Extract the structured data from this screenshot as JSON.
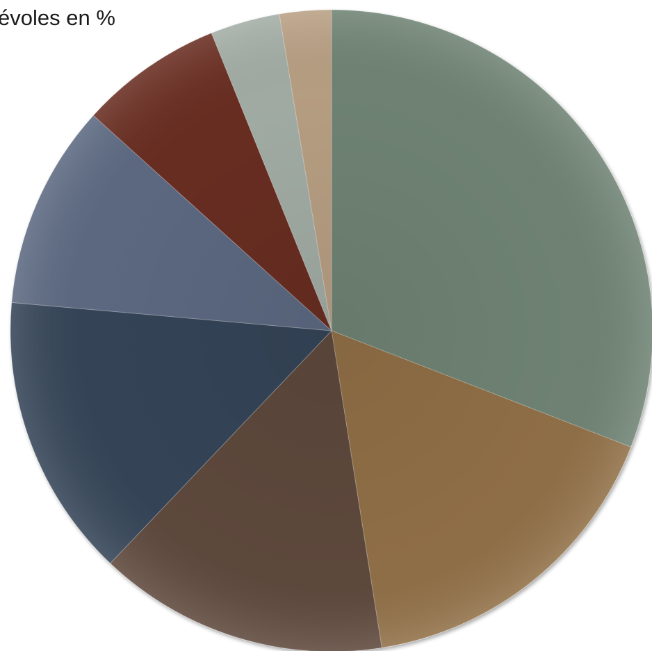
{
  "chart_data": {
    "type": "pie",
    "title": "évoles en %",
    "start_angle_deg": 0,
    "direction": "clockwise",
    "slices": [
      {
        "value": 30.9,
        "color": "#6f8474"
      },
      {
        "value": 16.6,
        "color": "#917046"
      },
      {
        "value": 14.6,
        "color": "#5f4a3e"
      },
      {
        "value": 14.3,
        "color": "#354558"
      },
      {
        "value": 10.3,
        "color": "#5d6a82"
      },
      {
        "value": 7.2,
        "color": "#6b2f24"
      },
      {
        "value": 3.5,
        "color": "#a3aea6"
      },
      {
        "value": 2.6,
        "color": "#b9a084"
      }
    ]
  }
}
